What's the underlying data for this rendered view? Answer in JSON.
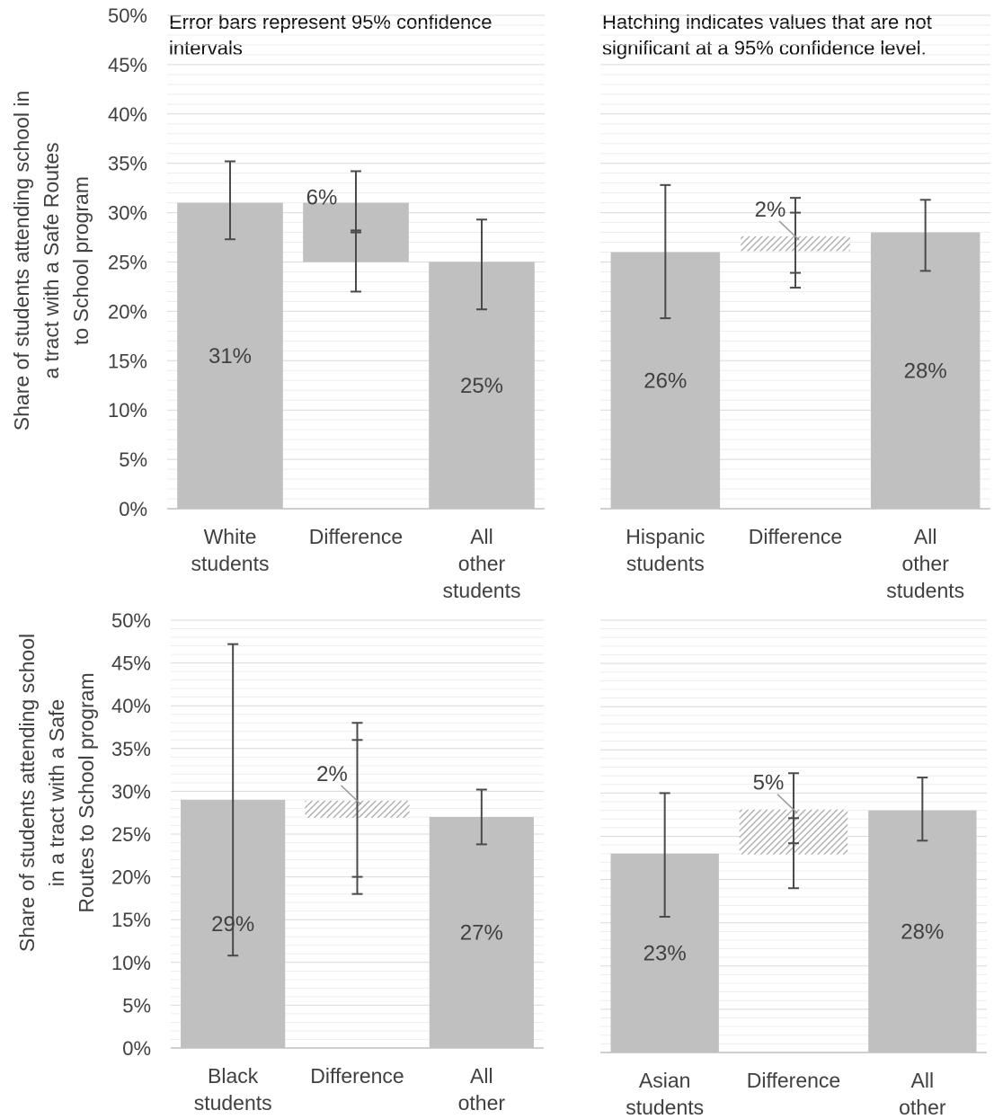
{
  "notes": {
    "error_bars": "Error bars represent 95% confidence intervals",
    "hatching": "Hatching indicates values that are not significant at a 95% confidence level."
  },
  "y_axis_labels": {
    "top": "Share of students attending school in a tract with a Safe Routes to School program",
    "bottom": "Share of students attending school in a tract with a Safe Routes to School program"
  },
  "colors": {
    "bar": "#c0c0c0",
    "error_bar": "#4a4a4a",
    "grid_major": "#d9d9d9",
    "grid_minor": "#ededed",
    "hatch": "#a8a8a8",
    "text": "#404040"
  },
  "chart_data": [
    {
      "type": "bar",
      "panel": "top-left",
      "categories": [
        "White students",
        "Difference",
        "All other students"
      ],
      "values": [
        31,
        6,
        25
      ],
      "value_labels": [
        "31%",
        "6%",
        "25%"
      ],
      "difference_range": [
        25,
        31
      ],
      "difference_significant": true,
      "error_bars": [
        [
          27.3,
          35.2
        ],
        [
          22,
          34.2
        ],
        [
          20.2,
          29.3
        ]
      ],
      "ylim": [
        0,
        50
      ],
      "yticks": [
        "0%",
        "5%",
        "10%",
        "15%",
        "20%",
        "25%",
        "30%",
        "35%",
        "40%",
        "45%",
        "50%"
      ],
      "show_y_ticks": true
    },
    {
      "type": "bar",
      "panel": "top-right",
      "categories": [
        "Hispanic students",
        "Difference",
        "All other students"
      ],
      "values": [
        26,
        2,
        28
      ],
      "value_labels": [
        "26%",
        "2%",
        "28%"
      ],
      "difference_range": [
        26.1,
        27.6
      ],
      "difference_significant": false,
      "error_bars": [
        [
          19.3,
          32.8
        ],
        [
          22.4,
          31.5
        ],
        [
          24.1,
          31.3
        ]
      ],
      "ylim": [
        0,
        50
      ],
      "yticks": [],
      "show_y_ticks": false
    },
    {
      "type": "bar",
      "panel": "bottom-left",
      "categories": [
        "Black students",
        "Difference",
        "All other students"
      ],
      "values": [
        29,
        2,
        27
      ],
      "value_labels": [
        "29%",
        "2%",
        "27%"
      ],
      "difference_range": [
        26.9,
        28.9
      ],
      "difference_significant": false,
      "error_bars": [
        [
          10.8,
          47.2
        ],
        [
          18,
          38
        ],
        [
          23.8,
          30.2
        ]
      ],
      "ylim": [
        0,
        50
      ],
      "yticks": [
        "0%",
        "5%",
        "10%",
        "15%",
        "20%",
        "25%",
        "30%",
        "35%",
        "40%",
        "45%",
        "50%"
      ],
      "show_y_ticks": true
    },
    {
      "type": "bar",
      "panel": "bottom-right",
      "categories": [
        "Asian students",
        "Difference",
        "All other students"
      ],
      "values": [
        23,
        5,
        28
      ],
      "value_labels": [
        "23%",
        "5%",
        "28%"
      ],
      "difference_range": [
        22.9,
        28.1
      ],
      "difference_significant": false,
      "error_bars": [
        [
          15.7,
          30
        ],
        [
          19,
          32.3
        ],
        [
          24.5,
          31.8
        ]
      ],
      "ylim": [
        0,
        50
      ],
      "yticks": [],
      "show_y_ticks": false
    }
  ]
}
